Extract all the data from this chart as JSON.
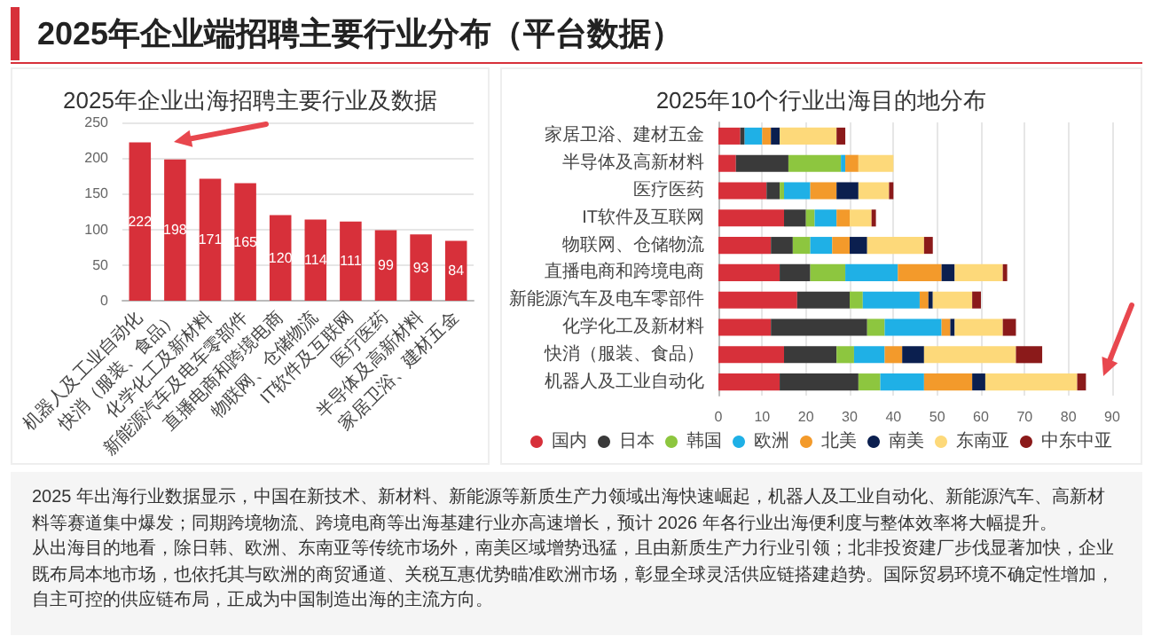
{
  "chart_data": [
    {
      "type": "other",
      "title": "2025年企业端招聘主要行业分布（平台数据）"
    },
    {
      "type": "bar",
      "title": "2025年企业出海招聘主要行业及数据",
      "categories": [
        "机器人及工业自动化",
        "快消（服装、食品）",
        "化学化工及新材料",
        "新能源汽车及电车零部件",
        "直播电商和跨境电商",
        "物联网、仓储物流",
        "IT软件及互联网",
        "医疗医药",
        "半导体及高新材料",
        "家居卫浴、建材五金"
      ],
      "values": [
        222,
        198,
        171,
        165,
        120,
        114,
        111,
        99,
        93,
        84
      ],
      "color": "#d7303a",
      "ylim": [
        0,
        250
      ],
      "yticks": [
        0,
        50,
        100,
        150,
        200,
        250
      ],
      "grid": "y",
      "data_labels": true
    },
    {
      "type": "bar",
      "title": "2025年10个行业出海目的地分布",
      "orientation": "horizontal",
      "stacked": true,
      "categories": [
        "家居卫浴、建材五金",
        "半导体及高新材料",
        "医疗医药",
        "IT软件及互联网",
        "物联网、仓储物流",
        "直播电商和跨境电商",
        "新能源汽车及电车零部件",
        "化学化工及新材料",
        "快消（服装、食品）",
        "机器人及工业自动化"
      ],
      "series": [
        {
          "name": "国内",
          "color": "#d7303a",
          "values": [
            5,
            4,
            11,
            15,
            12,
            14,
            18,
            12,
            15,
            14
          ]
        },
        {
          "name": "日本",
          "color": "#3a3a3a",
          "values": [
            1,
            12,
            3,
            5,
            5,
            7,
            12,
            22,
            12,
            18
          ]
        },
        {
          "name": "韩国",
          "color": "#8dc63f",
          "values": [
            0,
            12,
            1,
            2,
            4,
            8,
            3,
            4,
            4,
            5
          ]
        },
        {
          "name": "欧洲",
          "color": "#1fb0e6",
          "values": [
            4,
            1,
            6,
            5,
            5,
            12,
            13,
            13,
            7,
            10
          ]
        },
        {
          "name": "北美",
          "color": "#f39a2b",
          "values": [
            2,
            3,
            6,
            3,
            4,
            10,
            2,
            2,
            4,
            11
          ]
        },
        {
          "name": "南美",
          "color": "#0b1f4f",
          "values": [
            2,
            0,
            5,
            0,
            4,
            3,
            1,
            1,
            5,
            3
          ]
        },
        {
          "name": "东南亚",
          "color": "#fdd97a",
          "values": [
            13,
            8,
            7,
            5,
            13,
            11,
            9,
            11,
            21,
            21
          ]
        },
        {
          "name": "中东中亚",
          "color": "#8b1a1a",
          "values": [
            2,
            0,
            1,
            1,
            2,
            1,
            2,
            3,
            6,
            2
          ]
        }
      ],
      "xlim": [
        0,
        90
      ],
      "xticks": [
        0,
        10,
        20,
        30,
        40,
        50,
        60,
        70,
        80,
        90
      ],
      "grid": "x",
      "legend": "bottom"
    },
    {
      "type": "other",
      "annotations": [
        "2025 年出海行业数据显示，中国在新技术、新材料、新能源等新质生产力领域出海快速崛起，机器人及工业自动化、新能源汽车、高新材料等赛道集中爆发；同期跨境物流、跨境电商等出海基建行业亦高速增长，预计 2026 年各行业出海便利度与整体效率将大幅提升。",
        "从出海目的地看，除日韩、欧洲、东南亚等传统市场外，南美区域增势迅猛，且由新质生产力行业引领；北非投资建厂步伐显著加快，企业既布局本地市场，也依托其与欧洲的商贸通道、关税互惠优势瞄准欧洲市场，彰显全球灵活供应链搭建趋势。国际贸易环境不确定性增加，自主可控的供应链布局，正成为中国制造出海的主流方向。"
      ]
    }
  ]
}
